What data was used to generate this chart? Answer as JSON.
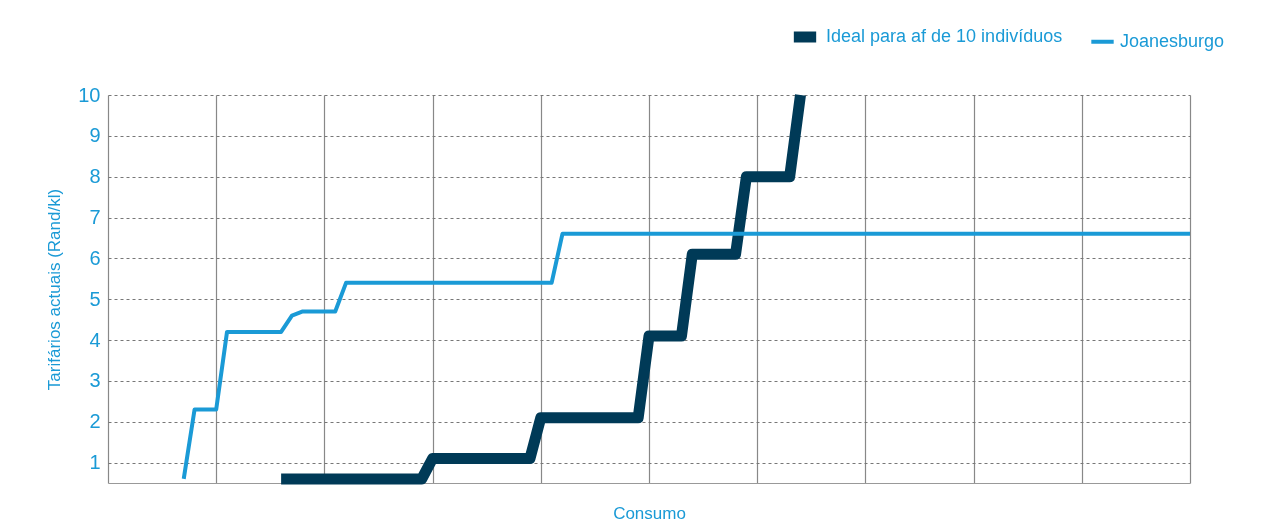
{
  "chart_data": {
    "type": "line",
    "xlabel": "Consumo",
    "ylabel": "Tarifários actuais (Rand/kl)",
    "categories": [
      null,
      null,
      null,
      null,
      null,
      null,
      null,
      null,
      null,
      null,
      null,
      null,
      null,
      null,
      null,
      null,
      null,
      null,
      null,
      null,
      null,
      null,
      null,
      null,
      null,
      null,
      null,
      null,
      null,
      null,
      null,
      null,
      null,
      null,
      null,
      null,
      null,
      null,
      null,
      null,
      null,
      null,
      null,
      null,
      null,
      null,
      null,
      null,
      null,
      null,
      null,
      null,
      null,
      null,
      null,
      null,
      null,
      null,
      null,
      null,
      null,
      null,
      null,
      null,
      null,
      null,
      null,
      null,
      null,
      null,
      null,
      null,
      null,
      null,
      null,
      null,
      null,
      null,
      null,
      null,
      null,
      null,
      null,
      null,
      null,
      null,
      null,
      null,
      null,
      null,
      null,
      null,
      null,
      null,
      null,
      null,
      null,
      null,
      null,
      null,
      null
    ],
    "series": [
      {
        "name": "Ideal para af de 10 indivíduos",
        "color": "#003a57",
        "values": [
          null,
          null,
          null,
          null,
          null,
          null,
          null,
          null,
          null,
          null,
          null,
          null,
          null,
          null,
          null,
          null,
          0.6,
          0.6,
          0.6,
          0.6,
          0.6,
          0.6,
          0.6,
          0.6,
          0.6,
          0.6,
          0.6,
          0.6,
          0.6,
          0.6,
          1.1,
          1.1,
          1.1,
          1.1,
          1.1,
          1.1,
          1.1,
          1.1,
          1.1,
          1.1,
          2.1,
          2.1,
          2.1,
          2.1,
          2.1,
          2.1,
          2.1,
          2.1,
          2.1,
          2.1,
          4.1,
          4.1,
          4.1,
          4.1,
          6.1,
          6.1,
          6.1,
          6.1,
          6.1,
          8.0,
          8.0,
          8.0,
          8.0,
          8.0,
          10,
          null,
          null,
          null,
          null,
          null,
          null,
          null,
          null,
          null,
          null,
          null,
          null,
          null,
          null,
          null,
          null,
          null,
          null,
          null,
          null,
          null,
          null,
          null,
          null,
          null,
          null,
          null,
          null,
          null,
          null,
          null,
          null,
          null,
          null,
          null,
          null
        ]
      },
      {
        "name": "Joanesburgo",
        "color": "#1a9ad6",
        "values": [
          null,
          null,
          null,
          null,
          null,
          null,
          null,
          0.6,
          2.3,
          2.3,
          2.3,
          4.2,
          4.2,
          4.2,
          4.2,
          4.2,
          4.2,
          4.6,
          4.7,
          4.7,
          4.7,
          4.7,
          5.4,
          5.4,
          5.4,
          5.4,
          5.4,
          5.4,
          5.4,
          5.4,
          5.4,
          5.4,
          5.4,
          5.4,
          5.4,
          5.4,
          5.4,
          5.4,
          5.4,
          5.4,
          5.4,
          5.4,
          6.6,
          6.6,
          6.6,
          6.6,
          6.6,
          6.6,
          6.6,
          6.6,
          6.6,
          6.6,
          6.6,
          6.6,
          6.6,
          6.6,
          6.6,
          6.6,
          6.6,
          6.6,
          6.6,
          6.6,
          6.6,
          6.6,
          6.6,
          6.6,
          6.6,
          6.6,
          6.6,
          6.6,
          6.6,
          6.6,
          6.6,
          6.6,
          6.6,
          6.6,
          6.6,
          6.6,
          6.6,
          6.6,
          6.6,
          6.6,
          6.6,
          6.6,
          6.6,
          6.6,
          6.6,
          6.6,
          6.6,
          6.6,
          6.6,
          6.6,
          6.6,
          6.6,
          6.6,
          6.6,
          6.6,
          6.6,
          6.6,
          6.6,
          6.6
        ]
      }
    ],
    "ylim": [
      0.5,
      10
    ],
    "yticks": [
      1,
      2,
      3,
      4,
      5,
      6,
      7,
      8,
      9,
      10
    ],
    "grid": true,
    "legend": "top right",
    "tick_labels": "y",
    "marker": "none",
    "line_style": "solid"
  }
}
